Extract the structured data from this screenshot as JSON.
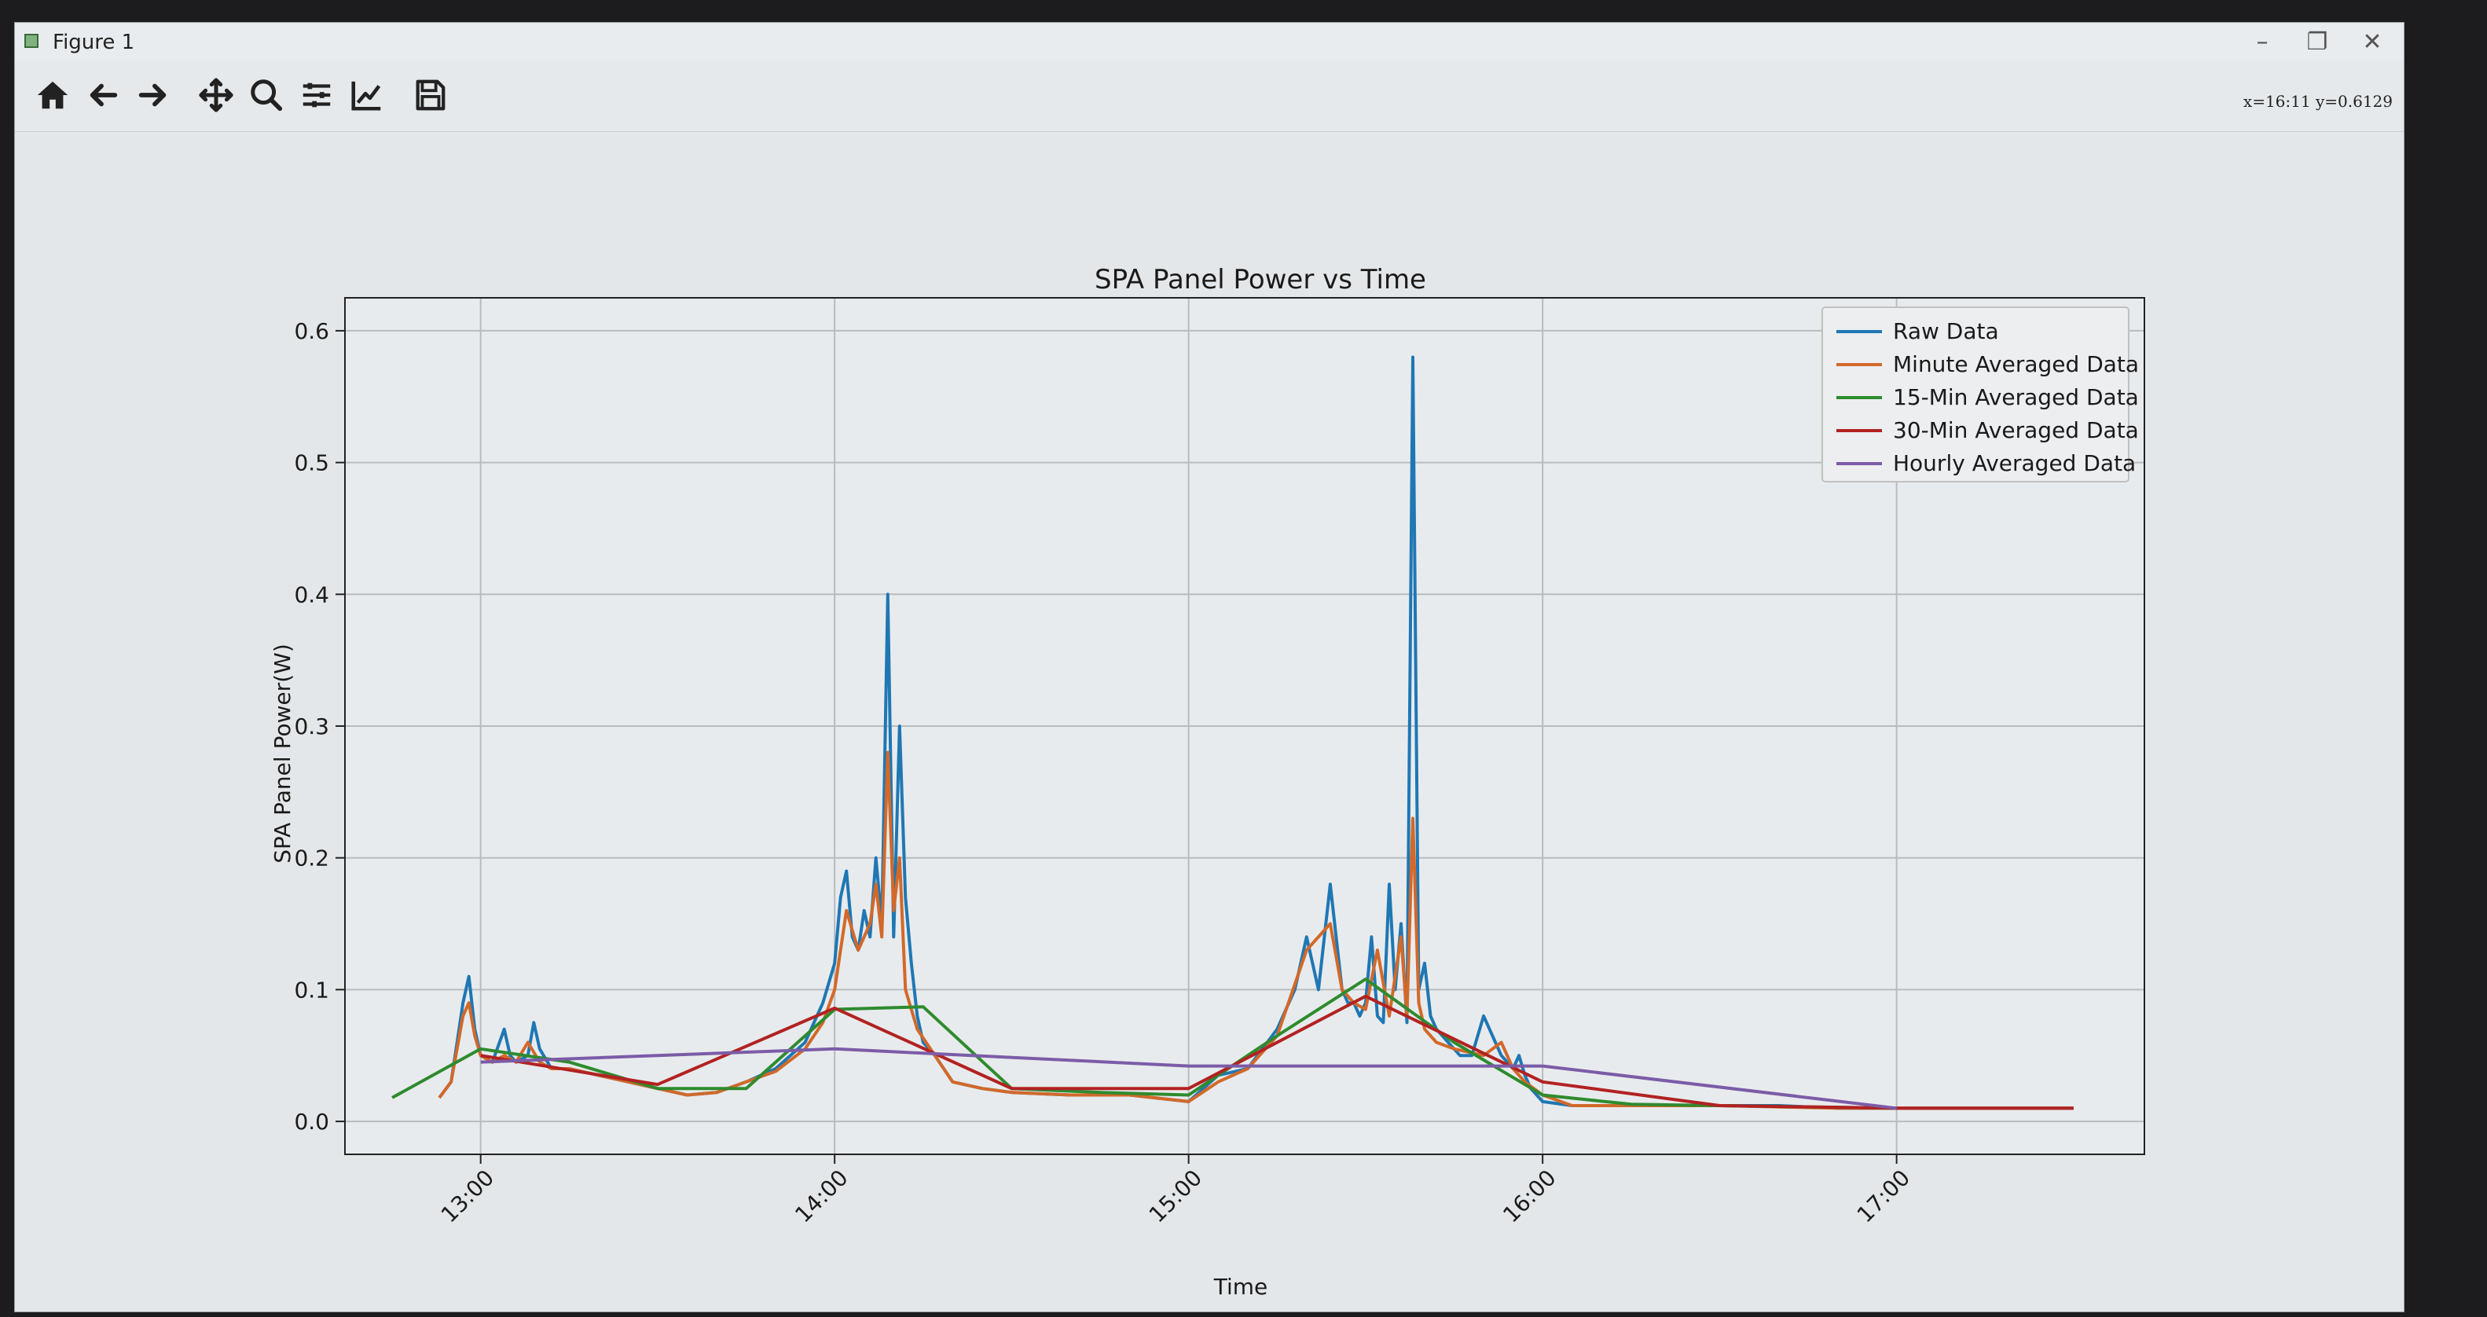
{
  "window": {
    "title": "Figure 1",
    "minimize": "–",
    "restore": "❐",
    "close": "✕"
  },
  "toolbar": {
    "coords": "x=16:11 y=0.6129",
    "tools": [
      "home-icon",
      "back-arrow-icon",
      "forward-arrow-icon",
      "pan-icon",
      "zoom-icon",
      "configure-subplots-icon",
      "edit-axis-icon",
      "save-icon"
    ]
  },
  "colors": {
    "raw": "#1f77b4",
    "minute": "#d2692a",
    "fifteen": "#2e8b2e",
    "thirty": "#b22222",
    "hourly": "#7b5ca8"
  },
  "chart_data": {
    "type": "line",
    "title": "SPA Panel Power vs Time",
    "xlabel": "Time",
    "ylabel": "SPA Panel Power(W)",
    "xlim": [
      "12:37",
      "17:42"
    ],
    "ylim": [
      -0.025,
      0.625
    ],
    "xticks": [
      "13:00",
      "14:00",
      "15:00",
      "16:00",
      "17:00"
    ],
    "yticks": [
      "0.0",
      "0.1",
      "0.2",
      "0.3",
      "0.4",
      "0.5",
      "0.6"
    ],
    "grid": true,
    "legend_position": "top-right",
    "series": [
      {
        "name": "Raw Data",
        "key": "raw",
        "x": [
          "12:53",
          "12:55",
          "12:56",
          "12:57",
          "12:58",
          "12:59",
          "13:00",
          "13:02",
          "13:04",
          "13:05",
          "13:06",
          "13:08",
          "13:09",
          "13:10",
          "13:12",
          "13:15",
          "13:20",
          "13:25",
          "13:30",
          "13:35",
          "13:40",
          "13:45",
          "13:50",
          "13:55",
          "13:58",
          "14:00",
          "14:01",
          "14:02",
          "14:03",
          "14:04",
          "14:05",
          "14:06",
          "14:07",
          "14:08",
          "14:09",
          "14:10",
          "14:11",
          "14:12",
          "14:13",
          "14:14",
          "14:15",
          "14:17",
          "14:20",
          "14:25",
          "14:30",
          "14:40",
          "14:50",
          "15:00",
          "15:05",
          "15:10",
          "15:15",
          "15:18",
          "15:20",
          "15:22",
          "15:24",
          "15:25",
          "15:26",
          "15:27",
          "15:28",
          "15:29",
          "15:30",
          "15:31",
          "15:32",
          "15:33",
          "15:34",
          "15:35",
          "15:36",
          "15:37",
          "15:38",
          "15:39",
          "15:40",
          "15:41",
          "15:42",
          "15:43",
          "15:44",
          "15:45",
          "15:46",
          "15:48",
          "15:50",
          "15:52",
          "15:53",
          "15:54",
          "15:55",
          "15:56",
          "15:57",
          "15:58",
          "15:59",
          "16:00",
          "16:05",
          "16:10",
          "16:20",
          "16:30",
          "16:40",
          "16:50",
          "17:00",
          "17:10",
          "17:20",
          "17:30"
        ],
        "y": [
          0.018,
          0.03,
          0.06,
          0.09,
          0.11,
          0.07,
          0.05,
          0.045,
          0.07,
          0.05,
          0.045,
          0.05,
          0.075,
          0.055,
          0.04,
          0.04,
          0.035,
          0.03,
          0.025,
          0.02,
          0.022,
          0.03,
          0.04,
          0.06,
          0.09,
          0.12,
          0.17,
          0.19,
          0.14,
          0.13,
          0.16,
          0.14,
          0.2,
          0.15,
          0.4,
          0.14,
          0.3,
          0.17,
          0.12,
          0.08,
          0.06,
          0.05,
          0.03,
          0.025,
          0.022,
          0.02,
          0.02,
          0.015,
          0.035,
          0.04,
          0.07,
          0.1,
          0.14,
          0.1,
          0.18,
          0.14,
          0.1,
          0.09,
          0.09,
          0.08,
          0.09,
          0.14,
          0.08,
          0.075,
          0.18,
          0.1,
          0.15,
          0.075,
          0.58,
          0.1,
          0.12,
          0.08,
          0.07,
          0.065,
          0.06,
          0.055,
          0.05,
          0.05,
          0.08,
          0.06,
          0.05,
          0.045,
          0.04,
          0.05,
          0.035,
          0.025,
          0.02,
          0.015,
          0.012,
          0.012,
          0.012,
          0.012,
          0.012,
          0.01,
          0.01,
          0.01,
          0.01,
          0.01
        ]
      },
      {
        "name": "Minute Averaged Data",
        "key": "minute",
        "x": [
          "12:53",
          "12:55",
          "12:57",
          "12:58",
          "12:59",
          "13:00",
          "13:02",
          "13:04",
          "13:06",
          "13:08",
          "13:10",
          "13:12",
          "13:15",
          "13:20",
          "13:25",
          "13:30",
          "13:35",
          "13:40",
          "13:45",
          "13:50",
          "13:55",
          "13:58",
          "14:00",
          "14:02",
          "14:04",
          "14:06",
          "14:07",
          "14:08",
          "14:09",
          "14:10",
          "14:11",
          "14:12",
          "14:14",
          "14:17",
          "14:20",
          "14:25",
          "14:30",
          "14:40",
          "14:50",
          "15:00",
          "15:05",
          "15:10",
          "15:15",
          "15:20",
          "15:24",
          "15:26",
          "15:28",
          "15:30",
          "15:32",
          "15:34",
          "15:36",
          "15:37",
          "15:38",
          "15:39",
          "15:40",
          "15:42",
          "15:45",
          "15:50",
          "15:53",
          "15:55",
          "15:57",
          "16:00",
          "16:05",
          "16:10",
          "16:20",
          "16:30",
          "16:40",
          "16:50",
          "17:00",
          "17:10",
          "17:20",
          "17:30"
        ],
        "y": [
          0.018,
          0.03,
          0.08,
          0.09,
          0.065,
          0.05,
          0.045,
          0.05,
          0.045,
          0.06,
          0.045,
          0.04,
          0.04,
          0.035,
          0.03,
          0.025,
          0.02,
          0.022,
          0.03,
          0.038,
          0.055,
          0.075,
          0.1,
          0.16,
          0.13,
          0.15,
          0.18,
          0.14,
          0.28,
          0.16,
          0.2,
          0.1,
          0.07,
          0.05,
          0.03,
          0.025,
          0.022,
          0.02,
          0.02,
          0.015,
          0.03,
          0.04,
          0.065,
          0.13,
          0.15,
          0.1,
          0.09,
          0.085,
          0.13,
          0.08,
          0.14,
          0.08,
          0.23,
          0.09,
          0.07,
          0.06,
          0.055,
          0.05,
          0.06,
          0.04,
          0.03,
          0.02,
          0.012,
          0.012,
          0.012,
          0.012,
          0.011,
          0.01,
          0.01,
          0.01,
          0.01,
          0.01
        ]
      },
      {
        "name": "15-Min Averaged Data",
        "key": "fifteen",
        "x": [
          "12:45",
          "13:00",
          "13:15",
          "13:30",
          "13:45",
          "14:00",
          "14:15",
          "14:30",
          "14:45",
          "15:00",
          "15:15",
          "15:30",
          "15:45",
          "16:00",
          "16:15",
          "16:30",
          "16:45",
          "17:00"
        ],
        "y": [
          0.018,
          0.055,
          0.045,
          0.025,
          0.025,
          0.085,
          0.087,
          0.025,
          0.022,
          0.02,
          0.065,
          0.108,
          0.06,
          0.02,
          0.013,
          0.012,
          0.011,
          0.01
        ]
      },
      {
        "name": "30-Min Averaged Data",
        "key": "thirty",
        "x": [
          "13:00",
          "13:30",
          "14:00",
          "14:30",
          "15:00",
          "15:30",
          "16:00",
          "16:30",
          "17:00",
          "17:30"
        ],
        "y": [
          0.05,
          0.028,
          0.086,
          0.025,
          0.025,
          0.095,
          0.03,
          0.012,
          0.01,
          0.01
        ]
      },
      {
        "name": "Hourly Averaged Data",
        "key": "hourly",
        "x": [
          "13:00",
          "14:00",
          "15:00",
          "16:00",
          "17:00"
        ],
        "y": [
          0.045,
          0.055,
          0.042,
          0.042,
          0.01
        ]
      }
    ]
  }
}
